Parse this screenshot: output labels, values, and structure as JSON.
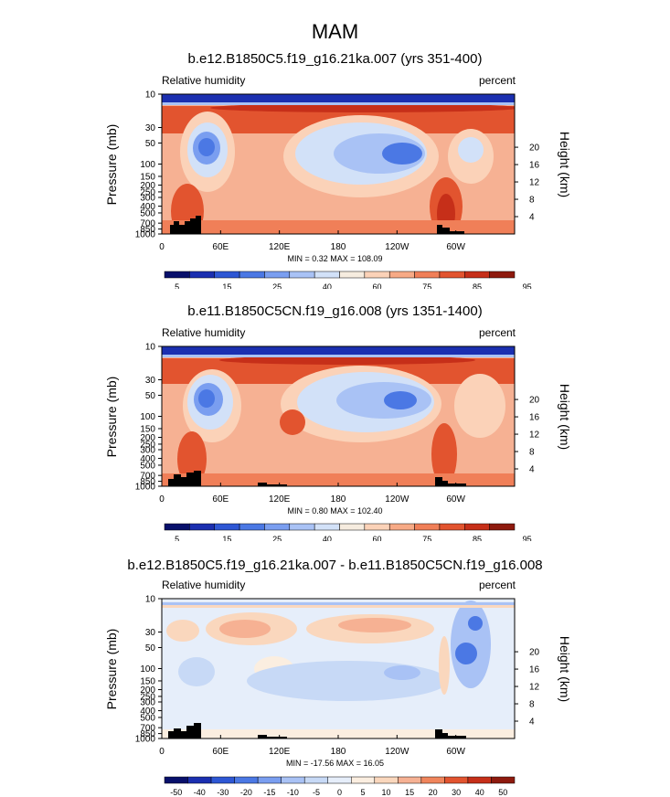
{
  "page": {
    "title": "MAM"
  },
  "colors": {
    "rh": [
      "#08106b",
      "#1b2fb0",
      "#2e57d4",
      "#4b78e4",
      "#7a9ef0",
      "#a9c2f5",
      "#d2e1f8",
      "#f6ecdf",
      "#fbd2b8",
      "#f7aa86",
      "#f07f58",
      "#e2542f",
      "#c62f19",
      "#8e1a0e"
    ],
    "diff": [
      "#08106b",
      "#1b2fb0",
      "#2e57d4",
      "#4b78e4",
      "#7a9ef0",
      "#a9c2f5",
      "#c7d9f6",
      "#e6eefa",
      "#fbeee0",
      "#fad7bd",
      "#f6b193",
      "#f0855c",
      "#e2542f",
      "#c62f19",
      "#8e1a0e"
    ]
  },
  "panels": [
    {
      "title": "b.e12.B1850C5.f19_g16.21ka.007 (yrs 351-400)",
      "left_label": "Relative humidity",
      "right_label": "percent",
      "minmax": "MIN =   0.32  MAX = 108.09",
      "colorbar_labels": [
        "5",
        "15",
        "25",
        "40",
        "60",
        "75",
        "85",
        "95"
      ]
    },
    {
      "title": "b.e11.B1850C5CN.f19_g16.008 (yrs 1351-1400)",
      "left_label": "Relative humidity",
      "right_label": "percent",
      "minmax": "MIN =   0.80  MAX = 102.40",
      "colorbar_labels": [
        "5",
        "15",
        "25",
        "40",
        "60",
        "75",
        "85",
        "95"
      ]
    },
    {
      "title": "b.e12.B1850C5.f19_g16.21ka.007 - b.e11.B1850C5CN.f19_g16.008",
      "left_label": "Relative humidity",
      "right_label": "percent",
      "minmax": "MIN = -17.56  MAX =  16.05",
      "colorbar_labels": [
        "-50",
        "-40",
        "-30",
        "-20",
        "-15",
        "-10",
        "-5",
        "0",
        "5",
        "10",
        "15",
        "20",
        "30",
        "40",
        "50"
      ]
    }
  ],
  "chart_data": [
    {
      "type": "heatmap",
      "title": "b.e12.B1850C5.f19_g16.21ka.007 (yrs 351-400)",
      "variable": "Relative humidity",
      "units": "percent",
      "xlabel": "",
      "ylabel": "Pressure (mb)",
      "y2label": "Height (km)",
      "xticks": [
        "0",
        "60E",
        "120E",
        "180",
        "120W",
        "60W"
      ],
      "yticks": [
        "10",
        "30",
        "50",
        "100",
        "150",
        "200",
        "250",
        "300",
        "400",
        "500",
        "700",
        "850",
        "1000"
      ],
      "y2ticks": [
        "20",
        "16",
        "12",
        "8",
        "4"
      ],
      "ylim": [
        1000,
        10
      ],
      "xlim": [
        0,
        360
      ],
      "levels": [
        5,
        10,
        15,
        20,
        25,
        30,
        40,
        50,
        60,
        70,
        75,
        80,
        85,
        90,
        95
      ],
      "min": 0.32,
      "max": 108.09
    },
    {
      "type": "heatmap",
      "title": "b.e11.B1850C5CN.f19_g16.008 (yrs 1351-1400)",
      "variable": "Relative humidity",
      "units": "percent",
      "xlabel": "",
      "ylabel": "Pressure (mb)",
      "y2label": "Height (km)",
      "xticks": [
        "0",
        "60E",
        "120E",
        "180",
        "120W",
        "60W"
      ],
      "yticks": [
        "10",
        "30",
        "50",
        "100",
        "150",
        "200",
        "250",
        "300",
        "400",
        "500",
        "700",
        "850",
        "1000"
      ],
      "y2ticks": [
        "20",
        "16",
        "12",
        "8",
        "4"
      ],
      "ylim": [
        1000,
        10
      ],
      "xlim": [
        0,
        360
      ],
      "min": 0.8,
      "max": 102.4
    },
    {
      "type": "heatmap",
      "title": "b.e12.B1850C5.f19_g16.21ka.007 - b.e11.B1850C5CN.f19_g16.008",
      "variable": "Relative humidity",
      "units": "percent",
      "xlabel": "",
      "ylabel": "Pressure (mb)",
      "y2label": "Height (km)",
      "xticks": [
        "0",
        "60E",
        "120E",
        "180",
        "120W",
        "60W"
      ],
      "yticks": [
        "10",
        "30",
        "50",
        "100",
        "150",
        "200",
        "250",
        "300",
        "400",
        "500",
        "700",
        "850",
        "1000"
      ],
      "y2ticks": [
        "20",
        "16",
        "12",
        "8",
        "4"
      ],
      "ylim": [
        1000,
        10
      ],
      "xlim": [
        0,
        360
      ],
      "levels": [
        -50,
        -40,
        -30,
        -20,
        -15,
        -10,
        -5,
        0,
        5,
        10,
        15,
        20,
        30,
        40,
        50
      ],
      "min": -17.56,
      "max": 16.05
    }
  ]
}
